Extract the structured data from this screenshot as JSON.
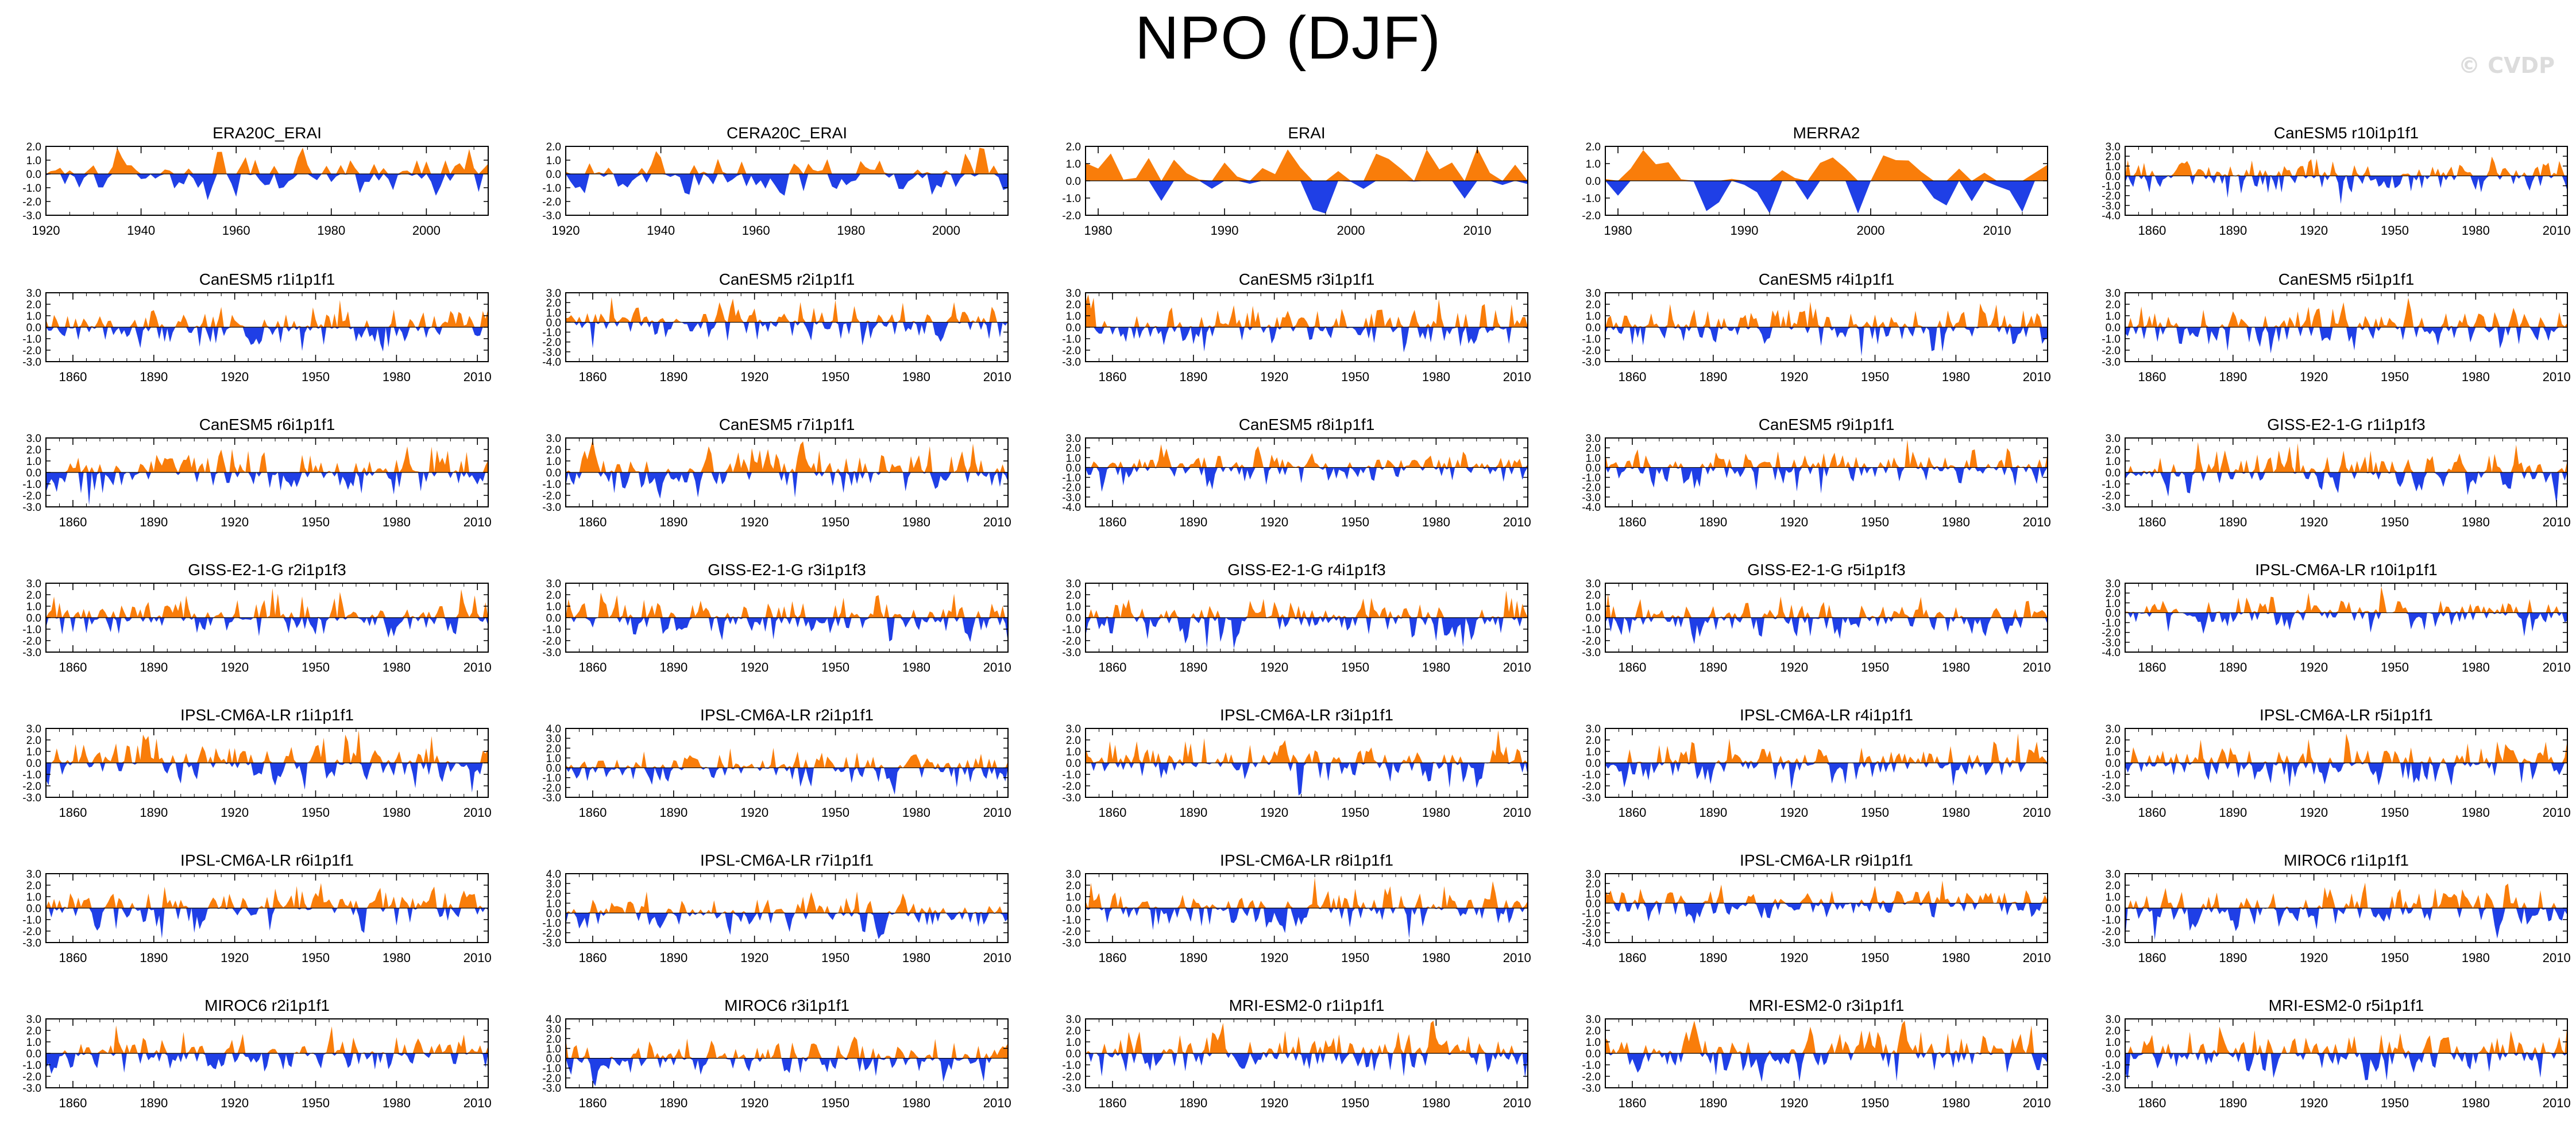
{
  "title": "NPO (DJF)",
  "watermark": "© CVDP",
  "colors": {
    "positive": "#f97d0a",
    "negative": "#1f3fe6",
    "axis": "#000000"
  },
  "chart_data": [
    {
      "type": "area",
      "title": "ERA20C_ERAI",
      "xlim": [
        1920,
        2013
      ],
      "xticks": [
        1920,
        1940,
        1960,
        1980,
        2000
      ],
      "ylim": [
        -3.0,
        2.0
      ],
      "yticks": [
        "2.0",
        "1.0",
        "0.0",
        "-1.0",
        "-2.0",
        "-3.0"
      ],
      "seed": 11,
      "amp": 0.8
    },
    {
      "type": "area",
      "title": "CERA20C_ERAI",
      "xlim": [
        1920,
        2013
      ],
      "xticks": [
        1920,
        1940,
        1960,
        1980,
        2000
      ],
      "ylim": [
        -3.0,
        2.0
      ],
      "yticks": [
        "2.0",
        "1.0",
        "0.0",
        "-1.0",
        "-2.0",
        "-3.0"
      ],
      "seed": 23,
      "amp": 0.8
    },
    {
      "type": "area",
      "title": "ERAI",
      "xlim": [
        1979,
        2014
      ],
      "xticks": [
        1980,
        1990,
        2000,
        2010
      ],
      "ylim": [
        -2.0,
        2.0
      ],
      "yticks": [
        "2.0",
        "1.0",
        "0.0",
        "-1.0",
        "-2.0"
      ],
      "seed": 37,
      "amp": 1.1
    },
    {
      "type": "area",
      "title": "MERRA2",
      "xlim": [
        1979,
        2014
      ],
      "xticks": [
        1980,
        1990,
        2000,
        2010
      ],
      "ylim": [
        -2.0,
        2.0
      ],
      "yticks": [
        "2.0",
        "1.0",
        "0.0",
        "-1.0",
        "-2.0"
      ],
      "seed": 41,
      "amp": 1.1
    },
    {
      "type": "area",
      "title": "CanESM5 r10i1p1f1",
      "xlim": [
        1850,
        2014
      ],
      "xticks": [
        1860,
        1890,
        1920,
        1950,
        1980,
        2010
      ],
      "ylim": [
        -4.0,
        3.0
      ],
      "yticks": [
        "3.0",
        "2.0",
        "1.0",
        "0.0",
        "-1.0",
        "-2.0",
        "-3.0",
        "-4.0"
      ],
      "seed": 53,
      "amp": 0.9
    },
    {
      "type": "area",
      "title": "CanESM5 r1i1p1f1",
      "xlim": [
        1850,
        2014
      ],
      "xticks": [
        1860,
        1890,
        1920,
        1950,
        1980,
        2010
      ],
      "ylim": [
        -3.0,
        3.0
      ],
      "yticks": [
        "3.0",
        "2.0",
        "1.0",
        "0.0",
        "-1.0",
        "-2.0",
        "-3.0"
      ],
      "seed": 61,
      "amp": 0.9
    },
    {
      "type": "area",
      "title": "CanESM5 r2i1p1f1",
      "xlim": [
        1850,
        2014
      ],
      "xticks": [
        1860,
        1890,
        1920,
        1950,
        1980,
        2010
      ],
      "ylim": [
        -4.0,
        3.0
      ],
      "yticks": [
        "3.0",
        "2.0",
        "1.0",
        "0.0",
        "-1.0",
        "-2.0",
        "-3.0",
        "-4.0"
      ],
      "seed": 67,
      "amp": 0.9
    },
    {
      "type": "area",
      "title": "CanESM5 r3i1p1f1",
      "xlim": [
        1850,
        2014
      ],
      "xticks": [
        1860,
        1890,
        1920,
        1950,
        1980,
        2010
      ],
      "ylim": [
        -3.0,
        3.0
      ],
      "yticks": [
        "3.0",
        "2.0",
        "1.0",
        "0.0",
        "-1.0",
        "-2.0",
        "-3.0"
      ],
      "seed": 71,
      "amp": 0.9
    },
    {
      "type": "area",
      "title": "CanESM5 r4i1p1f1",
      "xlim": [
        1850,
        2014
      ],
      "xticks": [
        1860,
        1890,
        1920,
        1950,
        1980,
        2010
      ],
      "ylim": [
        -3.0,
        3.0
      ],
      "yticks": [
        "3.0",
        "2.0",
        "1.0",
        "0.0",
        "-1.0",
        "-2.0",
        "-3.0"
      ],
      "seed": 73,
      "amp": 0.9
    },
    {
      "type": "area",
      "title": "CanESM5 r5i1p1f1",
      "xlim": [
        1850,
        2014
      ],
      "xticks": [
        1860,
        1890,
        1920,
        1950,
        1980,
        2010
      ],
      "ylim": [
        -3.0,
        3.0
      ],
      "yticks": [
        "3.0",
        "2.0",
        "1.0",
        "0.0",
        "-1.0",
        "-2.0",
        "-3.0"
      ],
      "seed": 79,
      "amp": 0.9
    },
    {
      "type": "area",
      "title": "CanESM5 r6i1p1f1",
      "xlim": [
        1850,
        2014
      ],
      "xticks": [
        1860,
        1890,
        1920,
        1950,
        1980,
        2010
      ],
      "ylim": [
        -3.0,
        3.0
      ],
      "yticks": [
        "3.0",
        "2.0",
        "1.0",
        "0.0",
        "-1.0",
        "-2.0",
        "-3.0"
      ],
      "seed": 83,
      "amp": 0.9
    },
    {
      "type": "area",
      "title": "CanESM5 r7i1p1f1",
      "xlim": [
        1850,
        2014
      ],
      "xticks": [
        1860,
        1890,
        1920,
        1950,
        1980,
        2010
      ],
      "ylim": [
        -3.0,
        3.0
      ],
      "yticks": [
        "3.0",
        "2.0",
        "1.0",
        "0.0",
        "-1.0",
        "-2.0",
        "-3.0"
      ],
      "seed": 89,
      "amp": 0.9
    },
    {
      "type": "area",
      "title": "CanESM5 r8i1p1f1",
      "xlim": [
        1850,
        2014
      ],
      "xticks": [
        1860,
        1890,
        1920,
        1950,
        1980,
        2010
      ],
      "ylim": [
        -4.0,
        3.0
      ],
      "yticks": [
        "3.0",
        "2.0",
        "1.0",
        "0.0",
        "-1.0",
        "-2.0",
        "-3.0",
        "-4.0"
      ],
      "seed": 97,
      "amp": 0.9
    },
    {
      "type": "area",
      "title": "CanESM5 r9i1p1f1",
      "xlim": [
        1850,
        2014
      ],
      "xticks": [
        1860,
        1890,
        1920,
        1950,
        1980,
        2010
      ],
      "ylim": [
        -4.0,
        3.0
      ],
      "yticks": [
        "3.0",
        "2.0",
        "1.0",
        "0.0",
        "-1.0",
        "-2.0",
        "-3.0",
        "-4.0"
      ],
      "seed": 101,
      "amp": 0.9
    },
    {
      "type": "area",
      "title": "GISS-E2-1-G r1i1p1f3",
      "xlim": [
        1850,
        2014
      ],
      "xticks": [
        1860,
        1890,
        1920,
        1950,
        1980,
        2010
      ],
      "ylim": [
        -3.0,
        3.0
      ],
      "yticks": [
        "3.0",
        "2.0",
        "1.0",
        "0.0",
        "-1.0",
        "-2.0",
        "-3.0"
      ],
      "seed": 103,
      "amp": 0.9
    },
    {
      "type": "area",
      "title": "GISS-E2-1-G r2i1p1f3",
      "xlim": [
        1850,
        2014
      ],
      "xticks": [
        1860,
        1890,
        1920,
        1950,
        1980,
        2010
      ],
      "ylim": [
        -3.0,
        3.0
      ],
      "yticks": [
        "3.0",
        "2.0",
        "1.0",
        "0.0",
        "-1.0",
        "-2.0",
        "-3.0"
      ],
      "seed": 107,
      "amp": 0.9
    },
    {
      "type": "area",
      "title": "GISS-E2-1-G r3i1p1f3",
      "xlim": [
        1850,
        2014
      ],
      "xticks": [
        1860,
        1890,
        1920,
        1950,
        1980,
        2010
      ],
      "ylim": [
        -3.0,
        3.0
      ],
      "yticks": [
        "3.0",
        "2.0",
        "1.0",
        "0.0",
        "-1.0",
        "-2.0",
        "-3.0"
      ],
      "seed": 109,
      "amp": 0.9
    },
    {
      "type": "area",
      "title": "GISS-E2-1-G r4i1p1f3",
      "xlim": [
        1850,
        2014
      ],
      "xticks": [
        1860,
        1890,
        1920,
        1950,
        1980,
        2010
      ],
      "ylim": [
        -3.0,
        3.0
      ],
      "yticks": [
        "3.0",
        "2.0",
        "1.0",
        "0.0",
        "-1.0",
        "-2.0",
        "-3.0"
      ],
      "seed": 113,
      "amp": 0.9
    },
    {
      "type": "area",
      "title": "GISS-E2-1-G r5i1p1f3",
      "xlim": [
        1850,
        2014
      ],
      "xticks": [
        1860,
        1890,
        1920,
        1950,
        1980,
        2010
      ],
      "ylim": [
        -3.0,
        3.0
      ],
      "yticks": [
        "3.0",
        "2.0",
        "1.0",
        "0.0",
        "-1.0",
        "-2.0",
        "-3.0"
      ],
      "seed": 127,
      "amp": 0.9
    },
    {
      "type": "area",
      "title": "IPSL-CM6A-LR r10i1p1f1",
      "xlim": [
        1850,
        2014
      ],
      "xticks": [
        1860,
        1890,
        1920,
        1950,
        1980,
        2010
      ],
      "ylim": [
        -4.0,
        3.0
      ],
      "yticks": [
        "3.0",
        "2.0",
        "1.0",
        "0.0",
        "-1.0",
        "-2.0",
        "-3.0",
        "-4.0"
      ],
      "seed": 131,
      "amp": 0.9
    },
    {
      "type": "area",
      "title": "IPSL-CM6A-LR r1i1p1f1",
      "xlim": [
        1850,
        2014
      ],
      "xticks": [
        1860,
        1890,
        1920,
        1950,
        1980,
        2010
      ],
      "ylim": [
        -3.0,
        3.0
      ],
      "yticks": [
        "3.0",
        "2.0",
        "1.0",
        "0.0",
        "-1.0",
        "-2.0",
        "-3.0"
      ],
      "seed": 137,
      "amp": 0.9
    },
    {
      "type": "area",
      "title": "IPSL-CM6A-LR r2i1p1f1",
      "xlim": [
        1850,
        2014
      ],
      "xticks": [
        1860,
        1890,
        1920,
        1950,
        1980,
        2010
      ],
      "ylim": [
        -3.0,
        4.0
      ],
      "yticks": [
        "4.0",
        "3.0",
        "2.0",
        "1.0",
        "0.0",
        "-1.0",
        "-2.0",
        "-3.0"
      ],
      "seed": 139,
      "amp": 0.9
    },
    {
      "type": "area",
      "title": "IPSL-CM6A-LR r3i1p1f1",
      "xlim": [
        1850,
        2014
      ],
      "xticks": [
        1860,
        1890,
        1920,
        1950,
        1980,
        2010
      ],
      "ylim": [
        -3.0,
        3.0
      ],
      "yticks": [
        "3.0",
        "2.0",
        "1.0",
        "0.0",
        "-1.0",
        "-2.0",
        "-3.0"
      ],
      "seed": 149,
      "amp": 0.9
    },
    {
      "type": "area",
      "title": "IPSL-CM6A-LR r4i1p1f1",
      "xlim": [
        1850,
        2014
      ],
      "xticks": [
        1860,
        1890,
        1920,
        1950,
        1980,
        2010
      ],
      "ylim": [
        -3.0,
        3.0
      ],
      "yticks": [
        "3.0",
        "2.0",
        "1.0",
        "0.0",
        "-1.0",
        "-2.0",
        "-3.0"
      ],
      "seed": 151,
      "amp": 0.9
    },
    {
      "type": "area",
      "title": "IPSL-CM6A-LR r5i1p1f1",
      "xlim": [
        1850,
        2014
      ],
      "xticks": [
        1860,
        1890,
        1920,
        1950,
        1980,
        2010
      ],
      "ylim": [
        -3.0,
        3.0
      ],
      "yticks": [
        "3.0",
        "2.0",
        "1.0",
        "0.0",
        "-1.0",
        "-2.0",
        "-3.0"
      ],
      "seed": 157,
      "amp": 0.9
    },
    {
      "type": "area",
      "title": "IPSL-CM6A-LR r6i1p1f1",
      "xlim": [
        1850,
        2014
      ],
      "xticks": [
        1860,
        1890,
        1920,
        1950,
        1980,
        2010
      ],
      "ylim": [
        -3.0,
        3.0
      ],
      "yticks": [
        "3.0",
        "2.0",
        "1.0",
        "0.0",
        "-1.0",
        "-2.0",
        "-3.0"
      ],
      "seed": 163,
      "amp": 0.9
    },
    {
      "type": "area",
      "title": "IPSL-CM6A-LR r7i1p1f1",
      "xlim": [
        1850,
        2014
      ],
      "xticks": [
        1860,
        1890,
        1920,
        1950,
        1980,
        2010
      ],
      "ylim": [
        -3.0,
        4.0
      ],
      "yticks": [
        "4.0",
        "3.0",
        "2.0",
        "1.0",
        "0.0",
        "-1.0",
        "-2.0",
        "-3.0"
      ],
      "seed": 167,
      "amp": 0.9
    },
    {
      "type": "area",
      "title": "IPSL-CM6A-LR r8i1p1f1",
      "xlim": [
        1850,
        2014
      ],
      "xticks": [
        1860,
        1890,
        1920,
        1950,
        1980,
        2010
      ],
      "ylim": [
        -3.0,
        3.0
      ],
      "yticks": [
        "3.0",
        "2.0",
        "1.0",
        "0.0",
        "-1.0",
        "-2.0",
        "-3.0"
      ],
      "seed": 173,
      "amp": 0.9
    },
    {
      "type": "area",
      "title": "IPSL-CM6A-LR r9i1p1f1",
      "xlim": [
        1850,
        2014
      ],
      "xticks": [
        1860,
        1890,
        1920,
        1950,
        1980,
        2010
      ],
      "ylim": [
        -4.0,
        3.0
      ],
      "yticks": [
        "3.0",
        "2.0",
        "1.0",
        "0.0",
        "-1.0",
        "-2.0",
        "-3.0",
        "-4.0"
      ],
      "seed": 179,
      "amp": 0.9
    },
    {
      "type": "area",
      "title": "MIROC6 r1i1p1f1",
      "xlim": [
        1850,
        2014
      ],
      "xticks": [
        1860,
        1890,
        1920,
        1950,
        1980,
        2010
      ],
      "ylim": [
        -3.0,
        3.0
      ],
      "yticks": [
        "3.0",
        "2.0",
        "1.0",
        "0.0",
        "-1.0",
        "-2.0",
        "-3.0"
      ],
      "seed": 181,
      "amp": 0.9
    },
    {
      "type": "area",
      "title": "MIROC6 r2i1p1f1",
      "xlim": [
        1850,
        2014
      ],
      "xticks": [
        1860,
        1890,
        1920,
        1950,
        1980,
        2010
      ],
      "ylim": [
        -3.0,
        3.0
      ],
      "yticks": [
        "3.0",
        "2.0",
        "1.0",
        "0.0",
        "-1.0",
        "-2.0",
        "-3.0"
      ],
      "seed": 191,
      "amp": 0.9
    },
    {
      "type": "area",
      "title": "MIROC6 r3i1p1f1",
      "xlim": [
        1850,
        2014
      ],
      "xticks": [
        1860,
        1890,
        1920,
        1950,
        1980,
        2010
      ],
      "ylim": [
        -3.0,
        4.0
      ],
      "yticks": [
        "4.0",
        "3.0",
        "2.0",
        "1.0",
        "0.0",
        "-1.0",
        "-2.0",
        "-3.0"
      ],
      "seed": 193,
      "amp": 0.9
    },
    {
      "type": "area",
      "title": "MRI-ESM2-0 r1i1p1f1",
      "xlim": [
        1850,
        2014
      ],
      "xticks": [
        1860,
        1890,
        1920,
        1950,
        1980,
        2010
      ],
      "ylim": [
        -3.0,
        3.0
      ],
      "yticks": [
        "3.0",
        "2.0",
        "1.0",
        "0.0",
        "-1.0",
        "-2.0",
        "-3.0"
      ],
      "seed": 197,
      "amp": 0.9
    },
    {
      "type": "area",
      "title": "MRI-ESM2-0 r3i1p1f1",
      "xlim": [
        1850,
        2014
      ],
      "xticks": [
        1860,
        1890,
        1920,
        1950,
        1980,
        2010
      ],
      "ylim": [
        -3.0,
        3.0
      ],
      "yticks": [
        "3.0",
        "2.0",
        "1.0",
        "0.0",
        "-1.0",
        "-2.0",
        "-3.0"
      ],
      "seed": 199,
      "amp": 0.9
    },
    {
      "type": "area",
      "title": "MRI-ESM2-0 r5i1p1f1",
      "xlim": [
        1850,
        2014
      ],
      "xticks": [
        1860,
        1890,
        1920,
        1950,
        1980,
        2010
      ],
      "ylim": [
        -3.0,
        3.0
      ],
      "yticks": [
        "3.0",
        "2.0",
        "1.0",
        "0.0",
        "-1.0",
        "-2.0",
        "-3.0"
      ],
      "seed": 211,
      "amp": 0.9
    }
  ]
}
